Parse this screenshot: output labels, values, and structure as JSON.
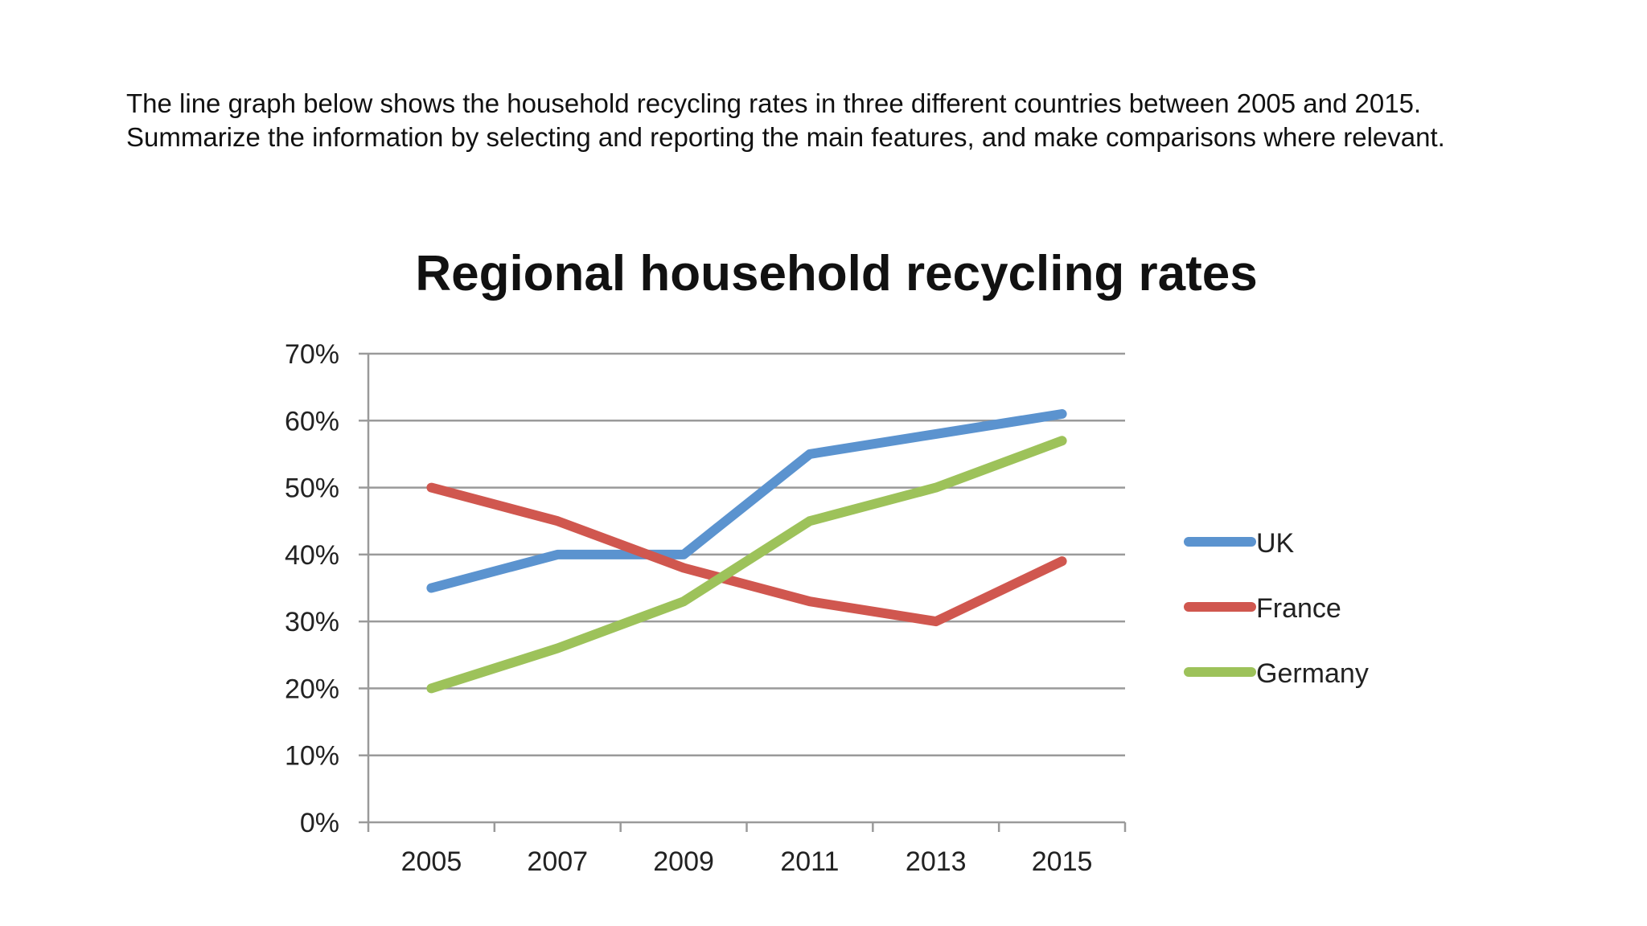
{
  "prompt": {
    "line1": "The line graph below shows the household recycling rates in three different countries between 2005 and 2015.",
    "line2": "Summarize the information by selecting and reporting the main features, and make comparisons where relevant."
  },
  "chart_data": {
    "type": "line",
    "title": "Regional household recycling rates",
    "xlabel": "",
    "ylabel": "",
    "categories": [
      "2005",
      "2007",
      "2009",
      "2011",
      "2013",
      "2015"
    ],
    "ylim": [
      0,
      70
    ],
    "y_ticks": [
      "0%",
      "10%",
      "20%",
      "30%",
      "40%",
      "50%",
      "60%",
      "70%"
    ],
    "grid": true,
    "legend_position": "right",
    "series": [
      {
        "name": "UK",
        "color": "#5b93cf",
        "values": [
          35,
          40,
          40,
          55,
          58,
          61
        ]
      },
      {
        "name": "France",
        "color": "#d0574f",
        "values": [
          50,
          45,
          38,
          33,
          30,
          39
        ]
      },
      {
        "name": "Germany",
        "color": "#9dc25a",
        "values": [
          20,
          26,
          33,
          45,
          50,
          57
        ]
      }
    ]
  }
}
